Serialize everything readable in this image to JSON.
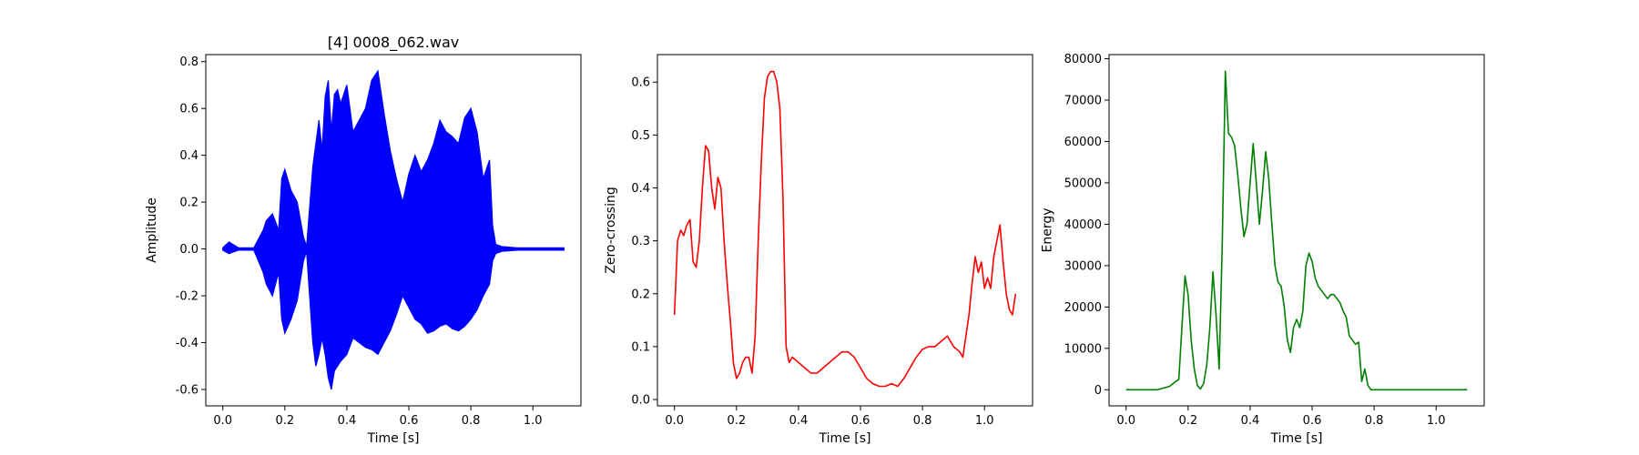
{
  "chart_data": [
    {
      "type": "line",
      "title": "[4] 0008_062.wav",
      "xlabel": "Time [s]",
      "ylabel": "Amplitude",
      "xlim": [
        -0.055,
        1.155
      ],
      "ylim": [
        -0.67,
        0.83
      ],
      "xticks": [
        "0.0",
        "0.2",
        "0.4",
        "0.6",
        "0.8",
        "1.0"
      ],
      "yticks": [
        "-0.6",
        "-0.4",
        "-0.2",
        "0.0",
        "0.2",
        "0.4",
        "0.6",
        "0.8"
      ],
      "color": "#0000ff",
      "grid": false,
      "series": [
        {
          "x": [
            0.0,
            0.02,
            0.05,
            0.1,
            0.13,
            0.14,
            0.16,
            0.18,
            0.19,
            0.2,
            0.22,
            0.24,
            0.26,
            0.27,
            0.29,
            0.3,
            0.31,
            0.32,
            0.33,
            0.34,
            0.35,
            0.36,
            0.37,
            0.38,
            0.4,
            0.42,
            0.44,
            0.46,
            0.48,
            0.5,
            0.52,
            0.54,
            0.56,
            0.58,
            0.6,
            0.62,
            0.64,
            0.66,
            0.68,
            0.7,
            0.72,
            0.74,
            0.76,
            0.78,
            0.8,
            0.82,
            0.84,
            0.86,
            0.87,
            0.88,
            0.9,
            0.95,
            1.0,
            1.05,
            1.1
          ],
          "upper": [
            0.005,
            0.03,
            0.005,
            0.005,
            0.08,
            0.12,
            0.15,
            0.08,
            0.3,
            0.34,
            0.25,
            0.2,
            0.05,
            0.01,
            0.35,
            0.45,
            0.55,
            0.42,
            0.65,
            0.72,
            0.5,
            0.66,
            0.68,
            0.62,
            0.7,
            0.5,
            0.55,
            0.6,
            0.72,
            0.76,
            0.58,
            0.42,
            0.3,
            0.2,
            0.32,
            0.4,
            0.33,
            0.38,
            0.45,
            0.55,
            0.5,
            0.48,
            0.45,
            0.56,
            0.6,
            0.5,
            0.3,
            0.38,
            0.1,
            0.02,
            0.01,
            0.005,
            0.005,
            0.005,
            0.005
          ],
          "lower": [
            -0.005,
            -0.02,
            -0.005,
            -0.005,
            -0.1,
            -0.15,
            -0.2,
            -0.1,
            -0.3,
            -0.36,
            -0.3,
            -0.22,
            -0.05,
            -0.01,
            -0.4,
            -0.5,
            -0.45,
            -0.38,
            -0.45,
            -0.55,
            -0.6,
            -0.52,
            -0.5,
            -0.48,
            -0.45,
            -0.38,
            -0.4,
            -0.42,
            -0.43,
            -0.45,
            -0.4,
            -0.35,
            -0.28,
            -0.2,
            -0.25,
            -0.3,
            -0.32,
            -0.36,
            -0.35,
            -0.33,
            -0.32,
            -0.34,
            -0.35,
            -0.33,
            -0.3,
            -0.26,
            -0.2,
            -0.15,
            -0.05,
            -0.02,
            -0.01,
            -0.005,
            -0.005,
            -0.005,
            -0.005
          ]
        }
      ]
    },
    {
      "type": "line",
      "title": "",
      "xlabel": "Time [s]",
      "ylabel": "Zero-crossing",
      "xlim": [
        -0.055,
        1.155
      ],
      "ylim": [
        -0.012,
        0.652
      ],
      "xticks": [
        "0.0",
        "0.2",
        "0.4",
        "0.6",
        "0.8",
        "1.0"
      ],
      "yticks": [
        "0.0",
        "0.1",
        "0.2",
        "0.3",
        "0.4",
        "0.5",
        "0.6"
      ],
      "color": "#ff0000",
      "grid": false,
      "series": [
        {
          "x": [
            0.0,
            0.01,
            0.02,
            0.03,
            0.04,
            0.05,
            0.06,
            0.07,
            0.08,
            0.09,
            0.1,
            0.11,
            0.12,
            0.13,
            0.14,
            0.15,
            0.16,
            0.17,
            0.18,
            0.19,
            0.2,
            0.21,
            0.22,
            0.23,
            0.24,
            0.25,
            0.26,
            0.27,
            0.28,
            0.29,
            0.3,
            0.31,
            0.32,
            0.33,
            0.34,
            0.35,
            0.36,
            0.37,
            0.38,
            0.4,
            0.42,
            0.44,
            0.46,
            0.48,
            0.5,
            0.52,
            0.54,
            0.56,
            0.58,
            0.6,
            0.62,
            0.64,
            0.66,
            0.68,
            0.7,
            0.72,
            0.74,
            0.76,
            0.78,
            0.8,
            0.82,
            0.84,
            0.86,
            0.88,
            0.9,
            0.92,
            0.93,
            0.94,
            0.95,
            0.96,
            0.97,
            0.98,
            0.99,
            1.0,
            1.01,
            1.02,
            1.03,
            1.04,
            1.05,
            1.06,
            1.07,
            1.08,
            1.09,
            1.1
          ],
          "y": [
            0.16,
            0.3,
            0.32,
            0.31,
            0.33,
            0.34,
            0.26,
            0.25,
            0.3,
            0.4,
            0.48,
            0.47,
            0.4,
            0.36,
            0.42,
            0.4,
            0.3,
            0.22,
            0.15,
            0.07,
            0.04,
            0.05,
            0.07,
            0.08,
            0.08,
            0.05,
            0.12,
            0.3,
            0.45,
            0.57,
            0.61,
            0.62,
            0.62,
            0.6,
            0.55,
            0.38,
            0.1,
            0.07,
            0.08,
            0.07,
            0.06,
            0.05,
            0.05,
            0.06,
            0.07,
            0.08,
            0.09,
            0.09,
            0.08,
            0.06,
            0.04,
            0.03,
            0.025,
            0.025,
            0.03,
            0.025,
            0.04,
            0.06,
            0.08,
            0.095,
            0.1,
            0.1,
            0.11,
            0.12,
            0.1,
            0.09,
            0.08,
            0.12,
            0.16,
            0.22,
            0.27,
            0.24,
            0.26,
            0.21,
            0.23,
            0.21,
            0.27,
            0.3,
            0.33,
            0.26,
            0.2,
            0.17,
            0.16,
            0.2
          ]
        }
      ]
    },
    {
      "type": "line",
      "title": "",
      "xlabel": "Time [s]",
      "ylabel": "Energy",
      "xlim": [
        -0.055,
        1.155
      ],
      "ylim": [
        -3900,
        81000
      ],
      "xticks": [
        "0.0",
        "0.2",
        "0.4",
        "0.6",
        "0.8",
        "1.0"
      ],
      "yticks": [
        "0",
        "10000",
        "20000",
        "30000",
        "40000",
        "50000",
        "60000",
        "70000",
        "80000"
      ],
      "color": "#008000",
      "grid": false,
      "series": [
        {
          "x": [
            0.0,
            0.1,
            0.14,
            0.16,
            0.17,
            0.18,
            0.19,
            0.2,
            0.21,
            0.22,
            0.23,
            0.24,
            0.25,
            0.26,
            0.27,
            0.28,
            0.29,
            0.3,
            0.31,
            0.32,
            0.33,
            0.34,
            0.35,
            0.36,
            0.37,
            0.38,
            0.39,
            0.4,
            0.41,
            0.42,
            0.43,
            0.44,
            0.45,
            0.46,
            0.47,
            0.48,
            0.49,
            0.5,
            0.51,
            0.52,
            0.53,
            0.54,
            0.55,
            0.56,
            0.57,
            0.58,
            0.59,
            0.6,
            0.61,
            0.62,
            0.63,
            0.64,
            0.65,
            0.66,
            0.67,
            0.68,
            0.69,
            0.7,
            0.71,
            0.72,
            0.73,
            0.74,
            0.75,
            0.76,
            0.77,
            0.78,
            0.79,
            0.8,
            0.81,
            0.82,
            0.83,
            0.84,
            0.85,
            0.86,
            0.87,
            0.88,
            0.89,
            0.9,
            0.95,
            1.0,
            1.05,
            1.1
          ],
          "y": [
            0,
            0,
            800,
            2000,
            2500,
            15000,
            27500,
            23000,
            12000,
            5000,
            1000,
            200,
            1500,
            6000,
            15000,
            28500,
            18000,
            5000,
            35000,
            77000,
            62000,
            61000,
            59000,
            52000,
            44000,
            37000,
            40000,
            50000,
            59500,
            50000,
            40000,
            48000,
            57500,
            51000,
            40000,
            30000,
            26000,
            25000,
            20000,
            12000,
            9000,
            15000,
            17000,
            15000,
            19000,
            30000,
            33000,
            31000,
            27000,
            25000,
            24000,
            23000,
            22000,
            23000,
            23000,
            22000,
            21000,
            19000,
            17500,
            13000,
            12000,
            11000,
            11500,
            2000,
            5000,
            1000,
            0,
            0,
            0,
            0,
            0,
            0,
            0,
            0,
            0,
            0,
            0,
            0,
            0,
            0,
            0,
            0
          ]
        }
      ]
    }
  ]
}
